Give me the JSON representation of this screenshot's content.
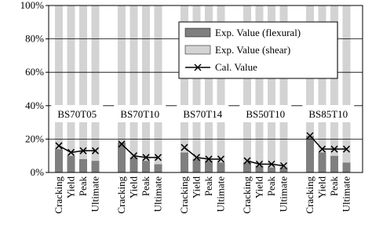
{
  "chart_data": {
    "type": "bar",
    "stacked": true,
    "groups": [
      "BS70T05",
      "BS70T10",
      "BS70T14",
      "BS50T10",
      "BS85T10"
    ],
    "categories": [
      "Cracking",
      "Yield",
      "Peak",
      "Ultimate",
      "Cracking",
      "Yield",
      "Peak",
      "Ultimate",
      "Cracking",
      "Yield",
      "Peak",
      "Ultimate",
      "Cracking",
      "Yield",
      "Peak",
      "Ultimate",
      "Cracking",
      "Yield",
      "Peak",
      "Ultimate"
    ],
    "series": [
      {
        "name": "Exp. Value (flexural)",
        "color": "#7f7f7f",
        "values": [
          14,
          10,
          8,
          7,
          18,
          9,
          7,
          5,
          12,
          8,
          7,
          6,
          6,
          4,
          3,
          3,
          22,
          12,
          10,
          6
        ]
      },
      {
        "name": "Exp. Value (shear)",
        "color": "#d3d3d3",
        "values": [
          86,
          90,
          92,
          93,
          82,
          91,
          93,
          95,
          88,
          92,
          93,
          94,
          94,
          96,
          97,
          97,
          78,
          88,
          90,
          94
        ]
      },
      {
        "name": "Cal. Value",
        "type": "line",
        "marker": "x",
        "color": "#000000",
        "values": [
          16,
          12,
          13,
          13,
          17,
          10,
          9,
          9,
          15,
          9,
          8,
          8,
          7,
          5,
          5,
          4,
          22,
          14,
          14,
          14
        ]
      }
    ],
    "ylim": [
      0,
      100
    ],
    "yticks": [
      {
        "value": 0,
        "label": "0%"
      },
      {
        "value": 20,
        "label": "20%"
      },
      {
        "value": 40,
        "label": "40%"
      },
      {
        "value": 60,
        "label": "60%"
      },
      {
        "value": 80,
        "label": "80%"
      },
      {
        "value": 100,
        "label": "100%"
      }
    ],
    "grid": true
  }
}
